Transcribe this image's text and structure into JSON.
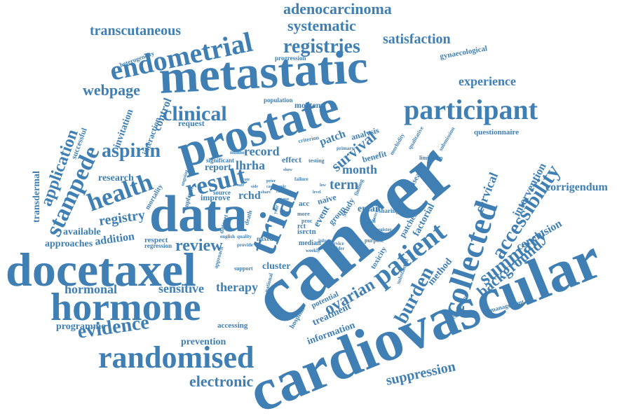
{
  "colors": {
    "word": "#3f7fb4",
    "background": "#ffffff"
  },
  "words": {
    "cancer": "cancer",
    "cardiovascular": "cardiovascular",
    "metastatic": "metastatic",
    "prostate": "prostate",
    "data": "data",
    "docetaxel": "docetaxel",
    "hormone": "hormone",
    "trial": "trial",
    "randomised": "randomised",
    "collected": "collected",
    "patient": "patient",
    "participant": "participant",
    "endometrial": "endometrial",
    "stampede": "stampede",
    "health": "health",
    "result": "result",
    "clinical": "clinical",
    "aspirin": "aspirin",
    "evidence": "evidence",
    "accessibility": "accessibility",
    "summary": "summary",
    "burden": "burden",
    "registries": "registries",
    "systematic": "systematic",
    "adenocarcinoma": "adenocarcinoma",
    "transcutaneous": "transcutaneous",
    "satisfaction": "satisfaction",
    "webpage": "webpage",
    "survival": "survival",
    "electronic": "electronic",
    "suppression": "suppression",
    "review": "review",
    "ovarian": "ovarian",
    "background": "background",
    "intervention": "intervention",
    "conclusion": "conclusion",
    "corrigendum": "corrigendum",
    "cervical": "cervical",
    "experience": "experience",
    "registry": "registry",
    "application": "application",
    "hormonal": "hormonal",
    "sensitive": "sensitive",
    "therapy": "therapy",
    "programme": "programme",
    "prevention": "prevention",
    "information": "information",
    "treatment": "treatment",
    "approaches": "approaches",
    "addition": "addition",
    "available": "available",
    "transdermal": "transdermal",
    "term": "term",
    "month": "month",
    "record": "record",
    "lhrha": "lhrha",
    "rchd": "rchd",
    "report": "report",
    "research": "research",
    "email": "email",
    "patch": "patch",
    "patches": "patches",
    "method": "method",
    "factorial": "factorial",
    "questionnaire": "questionnaire",
    "gynaecological": "gynaecological",
    "progression": "progression",
    "heterogeneity": "heterogeneity",
    "request": "request",
    "mortem": "mortem",
    "population": "population",
    "control": "control",
    "interaction": "interaction",
    "invitation": "invitation",
    "successful": "successful",
    "analysis": "analysis",
    "benefit": "benefit",
    "effect": "effect",
    "event": "event",
    "group": "group",
    "study": "study",
    "naive": "naive",
    "acc": "acc",
    "isrctn": "isrctn",
    "median": "median",
    "mixed": "mixed",
    "cluster": "cluster",
    "accessing": "accessing",
    "hospital": "hospital",
    "potential": "potential",
    "toxicity": "toxicity",
    "disease": "disease",
    "registration": "registration",
    "management": "management",
    "substantial": "substantial",
    "respect": "respect",
    "regression": "regression",
    "mortality": "mortality",
    "improve": "improve",
    "source": "source",
    "dataset": "dataset",
    "death": "death",
    "sharing": "sharing",
    "digital": "digital",
    "submission": "submission",
    "limitation": "limitation",
    "primary": "primary",
    "criterion": "criterion",
    "morbidity": "morbidity",
    "qualitative": "qualitative",
    "significant": "significant",
    "testing": "testing",
    "finding": "finding",
    "failure": "failure",
    "purpose": "purpose",
    "support": "support",
    "weekly": "weekly",
    "holder": "holder",
    "outcome": "outcome",
    "register": "register",
    "approach": "approach",
    "english": "english",
    "quality": "quality",
    "provide": "provide",
    "national": "national",
    "upfront": "upfront",
    "ongoing": "ongoing",
    "service": "service",
    "number": "number",
    "year": "year",
    "list": "list",
    "more": "more",
    "proc": "proc",
    "rct": "rct",
    "inform": "inform",
    "role": "role",
    "case": "case",
    "ratio": "ratio",
    "share": "share",
    "prior": "prior",
    "show": "show",
    "safe": "safe",
    "health2": "health",
    "level": "level",
    "low": "low",
    "side": "side",
    "rate": "rate",
    "use": "use"
  }
}
